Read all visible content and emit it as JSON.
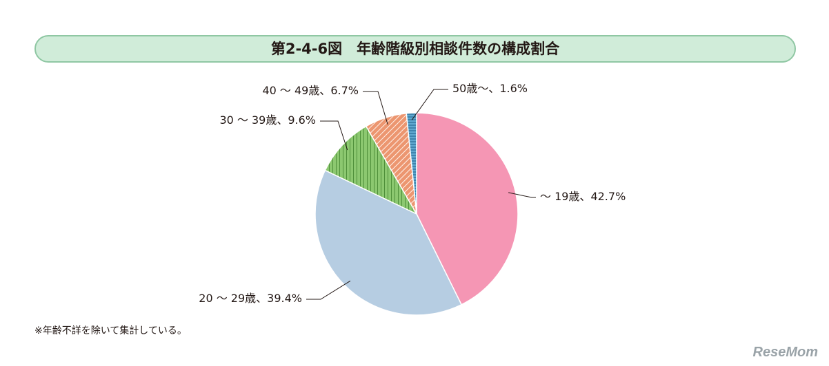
{
  "title": "第2-4-6図　年齢階級別相談件数の構成割合",
  "footnote": "※年齢不詳を除いて集計している。",
  "watermark": "ReseMom",
  "chart_data": {
    "type": "pie",
    "title": "第2-4-6図　年齢階級別相談件数の構成割合",
    "slices": [
      {
        "label": "〜 19歳、42.7%",
        "value": 42.7,
        "color": "#f596b4",
        "pattern": "solid"
      },
      {
        "label": "20 〜 29歳、39.4%",
        "value": 39.4,
        "color": "#b6cde2",
        "pattern": "solid"
      },
      {
        "label": "30 〜 39歳、9.6%",
        "value": 9.6,
        "color": "#8cc870",
        "pattern": "vertical-lines"
      },
      {
        "label": "40 〜 49歳、6.7%",
        "value": 6.7,
        "color": "#ec9670",
        "pattern": "diagonal-lines"
      },
      {
        "label": "50歳〜、1.6%",
        "value": 1.6,
        "color": "#5fa8d0",
        "pattern": "horizontal-lines"
      }
    ],
    "start": "12 o'clock",
    "direction": "clockwise",
    "legend": "none"
  }
}
